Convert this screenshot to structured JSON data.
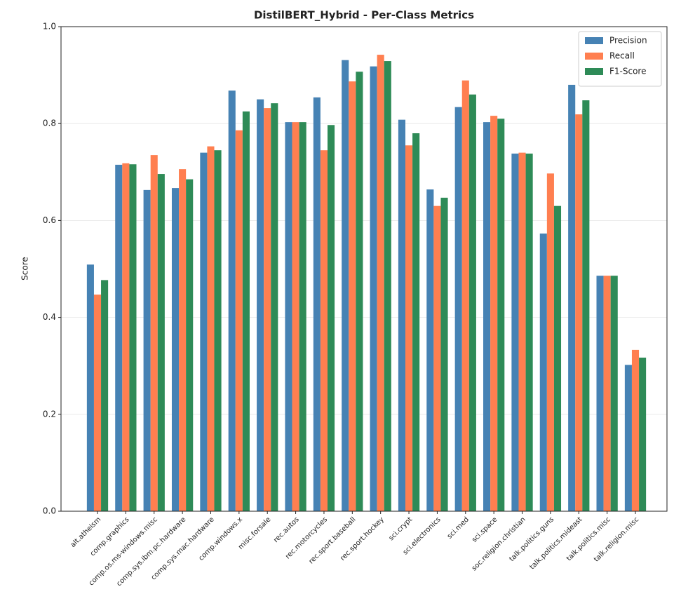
{
  "chart_data": {
    "type": "bar",
    "title": "DistilBERT_Hybrid - Per-Class Metrics",
    "y_label": "Score",
    "categories": [
      "alt.atheism",
      "comp.graphics",
      "comp.os.ms-windows.misc",
      "comp.sys.ibm.pc.hardware",
      "comp.sys.mac.hardware",
      "comp.windows.x",
      "misc.forsale",
      "rec.autos",
      "rec.motorcycles",
      "rec.sport.baseball",
      "rec.sport.hockey",
      "sci.crypt",
      "sci.electronics",
      "sci.med",
      "sci.space",
      "soc.religion.christian",
      "talk.politics.guns",
      "talk.politics.mideast",
      "talk.politics.misc",
      "talk.religion.misc"
    ],
    "series": [
      {
        "name": "Precision",
        "color": "#4682b4",
        "values": [
          0.509,
          0.715,
          0.663,
          0.667,
          0.74,
          0.868,
          0.85,
          0.803,
          0.854,
          0.931,
          0.918,
          0.808,
          0.664,
          0.834,
          0.803,
          0.738,
          0.573,
          0.88,
          0.486,
          0.302
        ]
      },
      {
        "name": "Recall",
        "color": "#ff7f50",
        "values": [
          0.447,
          0.718,
          0.735,
          0.706,
          0.753,
          0.786,
          0.832,
          0.803,
          0.745,
          0.887,
          0.942,
          0.755,
          0.63,
          0.889,
          0.816,
          0.74,
          0.697,
          0.819,
          0.486,
          0.333
        ]
      },
      {
        "name": "F1-Score",
        "color": "#2e8b57",
        "values": [
          0.477,
          0.716,
          0.696,
          0.685,
          0.745,
          0.825,
          0.842,
          0.803,
          0.797,
          0.907,
          0.929,
          0.78,
          0.647,
          0.86,
          0.81,
          0.738,
          0.63,
          0.848,
          0.486,
          0.317
        ]
      }
    ],
    "ylim": [
      0,
      1
    ],
    "yticks": [
      {
        "value": 0,
        "label": "0.0"
      },
      0.2,
      0.4,
      0.6,
      0.8,
      {
        "value": 1,
        "label": "1.0"
      }
    ],
    "grid": true,
    "legend": "upper right"
  }
}
